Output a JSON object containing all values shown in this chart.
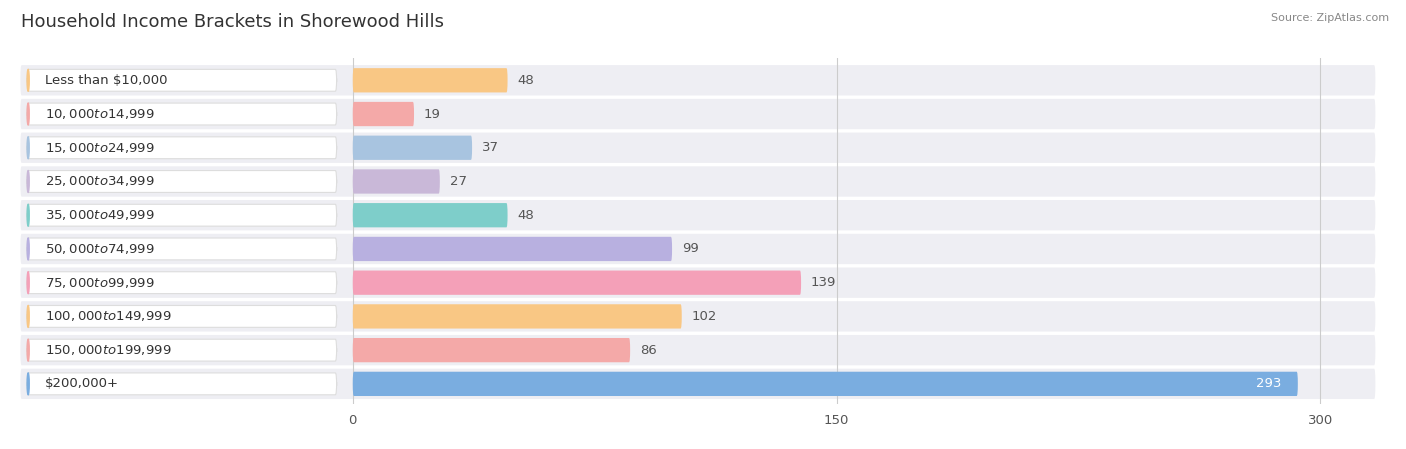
{
  "title": "Household Income Brackets in Shorewood Hills",
  "source": "Source: ZipAtlas.com",
  "categories": [
    "Less than $10,000",
    "$10,000 to $14,999",
    "$15,000 to $24,999",
    "$25,000 to $34,999",
    "$35,000 to $49,999",
    "$50,000 to $74,999",
    "$75,000 to $99,999",
    "$100,000 to $149,999",
    "$150,000 to $199,999",
    "$200,000+"
  ],
  "values": [
    48,
    19,
    37,
    27,
    48,
    99,
    139,
    102,
    86,
    293
  ],
  "bar_colors": [
    "#F9C784",
    "#F4A9A8",
    "#A8C4E0",
    "#C9B8D8",
    "#7ECECA",
    "#B8B0E0",
    "#F4A0B8",
    "#F9C784",
    "#F4A9A8",
    "#7AADE0"
  ],
  "row_bg_color": "#ebebeb",
  "bar_bg_color": "#f0f0f5",
  "label_bg_color": "#ffffff",
  "xlim_data": [
    0,
    310
  ],
  "x_max_display": 310,
  "xticks": [
    0,
    150,
    300
  ],
  "title_fontsize": 13,
  "label_fontsize": 9.5,
  "value_fontsize": 9.5,
  "source_fontsize": 8
}
